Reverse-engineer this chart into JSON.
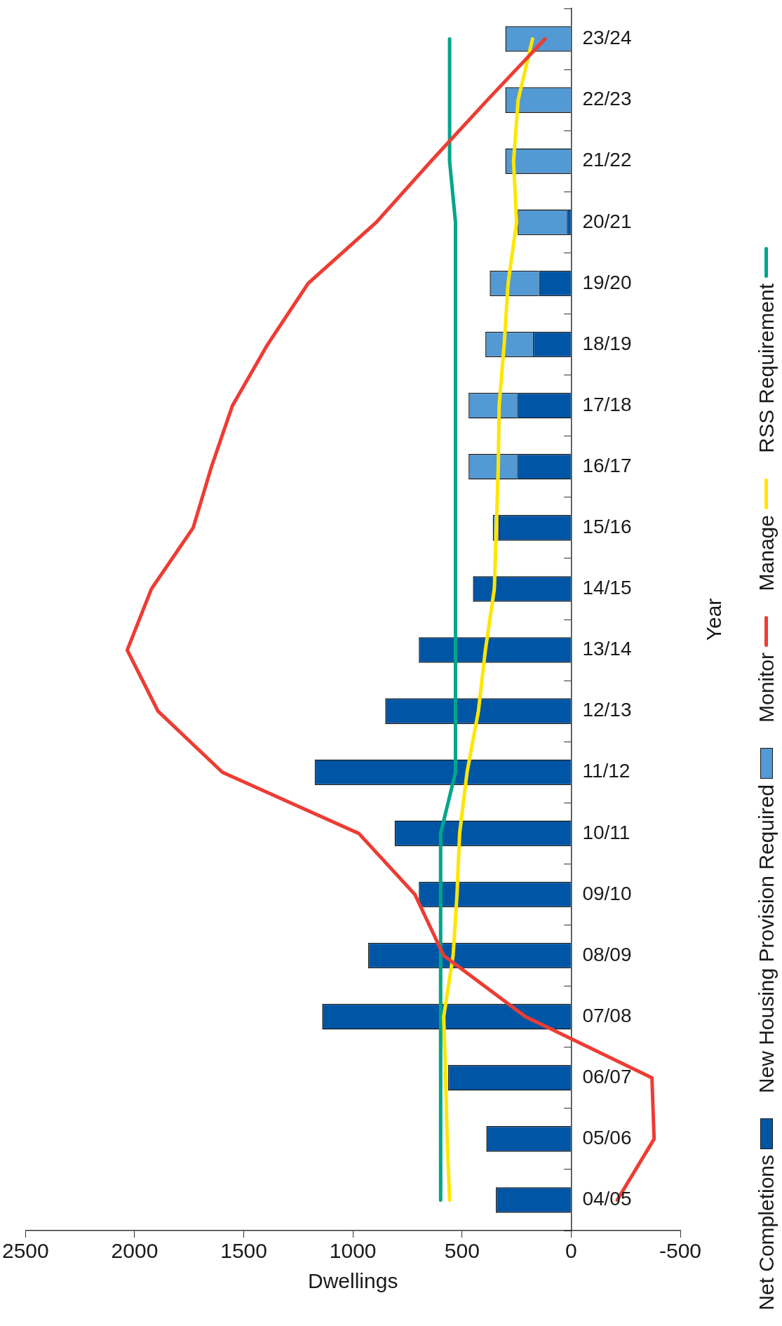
{
  "chart_data": {
    "type": "bar",
    "orientation": "horizontal",
    "xlabel": "Dwellings",
    "ylabel": "Year",
    "categories": [
      "23/24",
      "22/23",
      "21/22",
      "20/21",
      "19/20",
      "18/19",
      "17/18",
      "16/17",
      "15/16",
      "14/15",
      "13/14",
      "12/13",
      "11/12",
      "10/11",
      "09/10",
      "08/09",
      "07/08",
      "06/07",
      "05/06",
      "04/05"
    ],
    "stacked": true,
    "xlim": [
      2500,
      -500
    ],
    "xticks": [
      2500,
      2000,
      1500,
      1000,
      500,
      0,
      -500
    ],
    "grid": false,
    "legend": "right",
    "marker": "none",
    "series": [
      {
        "name": "Net Completions",
        "color": "#0055a5",
        "values": [
          0,
          0,
          0,
          20,
          148,
          175,
          248,
          248,
          334,
          450,
          698,
          852,
          1175,
          809,
          698,
          930,
          1141,
          564,
          389,
          345
        ]
      },
      {
        "name": "New Housing Provision Required",
        "color": "#5399d4",
        "values": [
          302,
          302,
          302,
          225,
          225,
          218,
          222,
          222,
          25,
          0,
          0,
          0,
          0,
          0,
          0,
          0,
          0,
          0,
          0,
          0
        ]
      },
      {
        "name": "Monitor",
        "type": "line",
        "color": "#ee3c33",
        "values": [
          120,
          384,
          642,
          893,
          1205,
          1391,
          1552,
          1648,
          1732,
          1923,
          2034,
          1893,
          1598,
          973,
          716,
          584,
          209,
          -370,
          -380,
          -211
        ]
      },
      {
        "name": "Manage",
        "type": "line",
        "color": "#ffe600",
        "values": [
          177,
          243,
          264,
          250,
          289,
          307,
          330,
          334,
          343,
          352,
          393,
          425,
          477,
          511,
          523,
          541,
          584,
          575,
          568,
          557
        ]
      },
      {
        "name": "RSS Requirement",
        "type": "line",
        "color": "#00a68b",
        "values": [
          557,
          557,
          557,
          530,
          530,
          530,
          530,
          530,
          530,
          530,
          530,
          530,
          530,
          598,
          598,
          598,
          598,
          598,
          598,
          598
        ]
      }
    ]
  }
}
